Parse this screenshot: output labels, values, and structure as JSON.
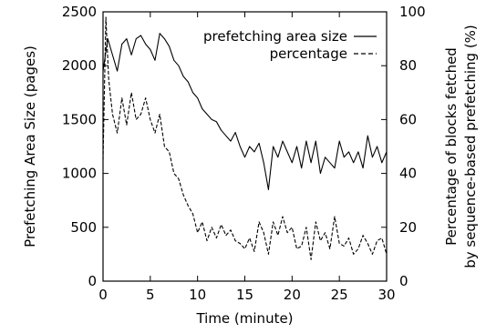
{
  "chart_data": {
    "type": "line",
    "title": "",
    "xlabel": "Time (minute)",
    "ylabel": "Prefetching Area Size (pages)",
    "y2label_line1": "Percentage of blocks fetched",
    "y2label_line2": "by sequence-based prefetching (%)",
    "xlim": [
      0,
      30
    ],
    "ylim": [
      0,
      2500
    ],
    "y2lim": [
      0,
      100
    ],
    "xticks": [
      "0",
      "5",
      "10",
      "15",
      "20",
      "25",
      "30"
    ],
    "yticks": [
      "0",
      "500",
      "1000",
      "1500",
      "2000",
      "2500"
    ],
    "y2ticks": [
      "0",
      "20",
      "40",
      "60",
      "80",
      "100"
    ],
    "grid": false,
    "legend_position": "top-right",
    "series": [
      {
        "name": "prefetching area size",
        "axis": "left",
        "style": "solid",
        "x": [
          0,
          0.5,
          1,
          1.5,
          2,
          2.5,
          3,
          3.5,
          4,
          4.5,
          5,
          5.5,
          6,
          6.5,
          7,
          7.5,
          8,
          8.5,
          9,
          9.5,
          10,
          10.5,
          11,
          11.5,
          12,
          12.5,
          13,
          13.5,
          14,
          14.5,
          15,
          15.5,
          16,
          16.5,
          17,
          17.5,
          18,
          18.5,
          19,
          19.5,
          20,
          20.5,
          21,
          21.5,
          22,
          22.5,
          23,
          23.5,
          24,
          24.5,
          25,
          25.5,
          26,
          26.5,
          27,
          27.5,
          28,
          28.5,
          29,
          29.5,
          30
        ],
        "y": [
          1950,
          2250,
          2100,
          1950,
          2200,
          2250,
          2100,
          2250,
          2280,
          2200,
          2150,
          2050,
          2300,
          2250,
          2180,
          2050,
          2000,
          1900,
          1850,
          1750,
          1700,
          1600,
          1550,
          1500,
          1480,
          1400,
          1350,
          1300,
          1380,
          1250,
          1150,
          1250,
          1200,
          1280,
          1100,
          850,
          1250,
          1150,
          1300,
          1200,
          1100,
          1250,
          1050,
          1300,
          1100,
          1300,
          1000,
          1150,
          1100,
          1050,
          1300,
          1150,
          1200,
          1100,
          1200,
          1050,
          1350,
          1150,
          1250,
          1100,
          1200
        ]
      },
      {
        "name": "percentage",
        "axis": "right",
        "style": "dashed",
        "x": [
          0,
          0.3,
          0.6,
          1,
          1.5,
          2,
          2.5,
          3,
          3.5,
          4,
          4.5,
          5,
          5.5,
          6,
          6.5,
          7,
          7.5,
          8,
          8.5,
          9,
          9.5,
          10,
          10.5,
          11,
          11.5,
          12,
          12.5,
          13,
          13.5,
          14,
          14.5,
          15,
          15.5,
          16,
          16.5,
          17,
          17.5,
          18,
          18.5,
          19,
          19.5,
          20,
          20.5,
          21,
          21.5,
          22,
          22.5,
          23,
          23.5,
          24,
          24.5,
          25,
          25.5,
          26,
          26.5,
          27,
          27.5,
          28,
          28.5,
          29,
          29.5,
          30
        ],
        "y": [
          45,
          98,
          75,
          62,
          55,
          68,
          58,
          70,
          60,
          62,
          68,
          60,
          55,
          62,
          50,
          48,
          40,
          38,
          32,
          28,
          25,
          18,
          22,
          15,
          20,
          16,
          21,
          17,
          19,
          15,
          14,
          12,
          16,
          11,
          22,
          18,
          10,
          22,
          17,
          24,
          18,
          20,
          12,
          13,
          20,
          8,
          22,
          15,
          18,
          12,
          24,
          14,
          13,
          16,
          10,
          12,
          17,
          14,
          10,
          15,
          16,
          10
        ]
      }
    ]
  }
}
